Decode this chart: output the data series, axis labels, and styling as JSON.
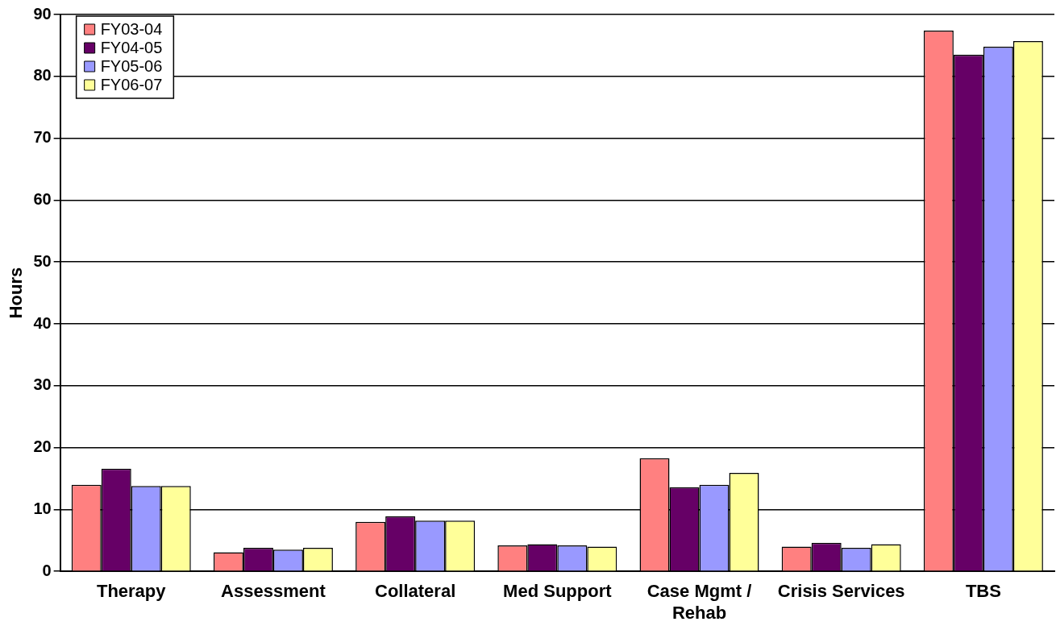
{
  "chart_data": {
    "type": "bar",
    "ylabel": "Hours",
    "categories": [
      "Therapy",
      "Assessment",
      "Collateral",
      "Med Support",
      "Case Mgmt / Rehab",
      "Crisis Services",
      "TBS"
    ],
    "series": [
      {
        "name": "FY03-04",
        "color": "#ff8080",
        "values": [
          14.0,
          3.1,
          8.0,
          4.2,
          18.3,
          4.0,
          87.4
        ]
      },
      {
        "name": "FY04-05",
        "color": "#660066",
        "values": [
          16.6,
          3.8,
          8.9,
          4.4,
          13.6,
          4.6,
          83.5
        ]
      },
      {
        "name": "FY05-06",
        "color": "#9999ff",
        "values": [
          13.8,
          3.5,
          8.2,
          4.2,
          14.0,
          3.8,
          84.8
        ]
      },
      {
        "name": "FY06-07",
        "color": "#ffff99",
        "values": [
          13.8,
          3.8,
          8.2,
          4.0,
          15.9,
          4.4,
          85.7
        ]
      }
    ],
    "ylim": [
      0,
      90
    ],
    "yticks": [
      0,
      10,
      20,
      30,
      40,
      50,
      60,
      70,
      80,
      90
    ],
    "grid": "y",
    "legend": "top left"
  }
}
